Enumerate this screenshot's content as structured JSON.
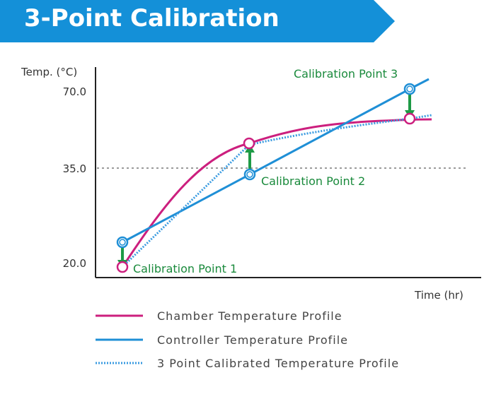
{
  "header": {
    "title": "3-Point Calibration"
  },
  "colors": {
    "banner": "#1490d8",
    "chamber": "#cc1f7e",
    "controller": "#1f8fd6",
    "calibrated": "#3a9be0",
    "offset_arrow": "#1e9a46",
    "calibration_label": "#1a8a3c",
    "reference_line": "#9a9a9a"
  },
  "chart_data": {
    "type": "line",
    "ylabel": "Temp. (°C)",
    "xlabel": "Time (hr)",
    "y_ticks": [
      "70.0",
      "35.0",
      "20.0"
    ],
    "reference_line_at": "35.0",
    "series": [
      {
        "name": "Chamber Temperature Profile",
        "style": "solid",
        "color_key": "chamber"
      },
      {
        "name": "Controller Temperature Profile",
        "style": "solid",
        "color_key": "controller"
      },
      {
        "name": "3 Point Calibrated Temperature Profile",
        "style": "dotted",
        "color_key": "calibrated"
      }
    ],
    "calibration_points": [
      {
        "label": "Calibration Point 1",
        "controller_above_chamber": true
      },
      {
        "label": "Calibration Point 2",
        "controller_above_chamber": false
      },
      {
        "label": "Calibration Point 3",
        "controller_above_chamber": true
      }
    ]
  }
}
